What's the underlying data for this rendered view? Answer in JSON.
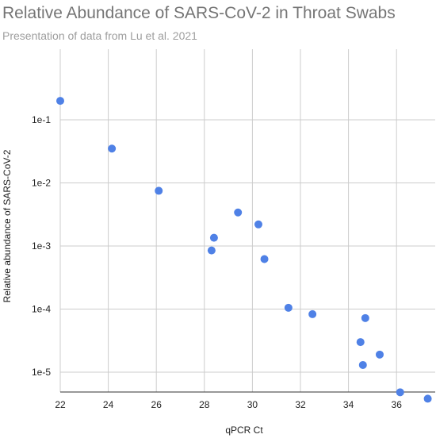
{
  "chart_data": {
    "type": "scatter",
    "title": "Relative Abundance of SARS-CoV-2 in Throat Swabs",
    "subtitle": "Presentation of data from Lu et al. 2021",
    "xlabel": "qPCR Ct",
    "ylabel": "Relative abundance of SARS-CoV-2",
    "y_scale": "log10",
    "xlim": [
      22,
      37.5
    ],
    "ylim": [
      4.5e-06,
      0.2
    ],
    "x_ticks": [
      22,
      24,
      26,
      28,
      30,
      32,
      34,
      36
    ],
    "x_tick_labels": [
      "22",
      "24",
      "26",
      "28",
      "30",
      "32",
      "34",
      "36"
    ],
    "y_ticks": [
      1e-05,
      0.0001,
      0.001,
      0.01,
      0.1
    ],
    "y_tick_labels": [
      "1e-5",
      "1e-4",
      "1e-3",
      "1e-2",
      "1e-1"
    ],
    "grid": true,
    "marker_color": "#4f81e6",
    "points": [
      {
        "x": 22.0,
        "y": 0.2
      },
      {
        "x": 24.15,
        "y": 0.035
      },
      {
        "x": 26.1,
        "y": 0.0075
      },
      {
        "x": 28.3,
        "y": 0.00085
      },
      {
        "x": 28.4,
        "y": 0.00135
      },
      {
        "x": 29.4,
        "y": 0.0034
      },
      {
        "x": 30.25,
        "y": 0.0022
      },
      {
        "x": 30.5,
        "y": 0.00062
      },
      {
        "x": 31.5,
        "y": 0.000105
      },
      {
        "x": 32.5,
        "y": 8.3e-05
      },
      {
        "x": 34.5,
        "y": 3e-05
      },
      {
        "x": 34.6,
        "y": 1.3e-05
      },
      {
        "x": 34.7,
        "y": 7.2e-05
      },
      {
        "x": 35.3,
        "y": 1.9e-05
      },
      {
        "x": 36.15,
        "y": 4.8e-06
      },
      {
        "x": 37.3,
        "y": 3.8e-06
      }
    ]
  }
}
